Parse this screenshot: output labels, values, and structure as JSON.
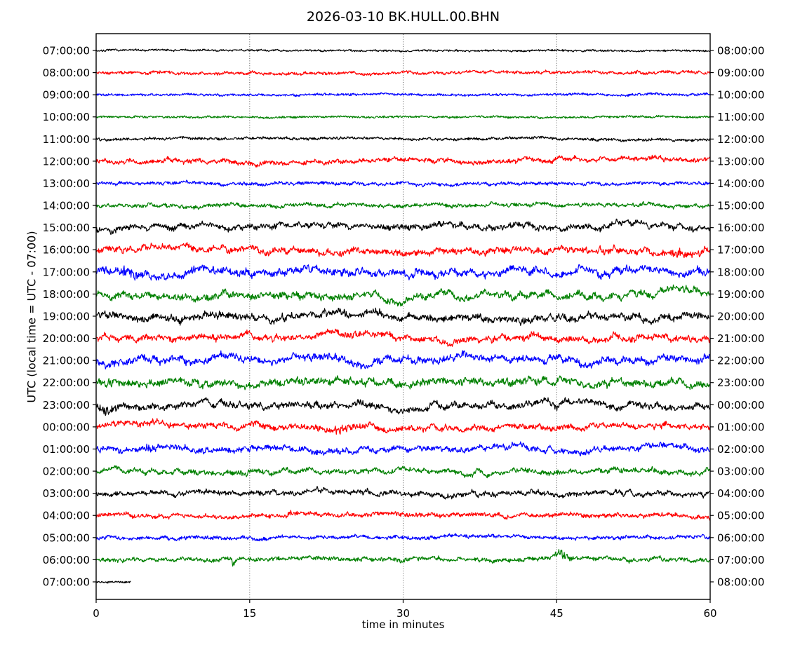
{
  "window": {
    "title": "2026-03-10 BK.HULL.00.BHN"
  },
  "chart_data": {
    "type": "line",
    "subtype": "seismogram-dayplot",
    "title": "2026-03-10 BK.HULL.00.BHN",
    "station_id": "BK.HULL.00.BHN",
    "date": "2026-03-10",
    "xlabel": "time in minutes",
    "ylabel": "UTC (local time = UTC - 07:00)",
    "xlim": [
      0,
      60
    ],
    "x_ticks": [
      0,
      15,
      30,
      45,
      60
    ],
    "grid_minutes": [
      15,
      30,
      45
    ],
    "grid_style": "dotted",
    "grid_color": "#555555",
    "frame_color": "#000000",
    "background_color": "#ffffff",
    "trace_color_cycle": [
      "#000000",
      "#ff0000",
      "#0000ff",
      "#008000"
    ],
    "minutes_per_line": 60,
    "rows": [
      {
        "utc_left_label": "07:00:00",
        "utc_right_label": "08:00:00",
        "color": "#000000",
        "amp": 2.2,
        "len_min": 60,
        "events": []
      },
      {
        "utc_left_label": "08:00:00",
        "utc_right_label": "09:00:00",
        "color": "#ff0000",
        "amp": 3.2,
        "len_min": 60,
        "events": []
      },
      {
        "utc_left_label": "09:00:00",
        "utc_right_label": "10:00:00",
        "color": "#0000ff",
        "amp": 2.6,
        "len_min": 60,
        "events": []
      },
      {
        "utc_left_label": "10:00:00",
        "utc_right_label": "11:00:00",
        "color": "#008000",
        "amp": 2.4,
        "len_min": 60,
        "events": []
      },
      {
        "utc_left_label": "11:00:00",
        "utc_right_label": "12:00:00",
        "color": "#000000",
        "amp": 3.0,
        "len_min": 60,
        "events": []
      },
      {
        "utc_left_label": "12:00:00",
        "utc_right_label": "13:00:00",
        "color": "#ff0000",
        "amp": 4.5,
        "len_min": 60,
        "events": []
      },
      {
        "utc_left_label": "13:00:00",
        "utc_right_label": "14:00:00",
        "color": "#0000ff",
        "amp": 3.5,
        "len_min": 60,
        "events": []
      },
      {
        "utc_left_label": "14:00:00",
        "utc_right_label": "15:00:00",
        "color": "#008000",
        "amp": 3.8,
        "len_min": 60,
        "events": []
      },
      {
        "utc_left_label": "15:00:00",
        "utc_right_label": "16:00:00",
        "color": "#000000",
        "amp": 5.5,
        "len_min": 60,
        "events": []
      },
      {
        "utc_left_label": "16:00:00",
        "utc_right_label": "17:00:00",
        "color": "#ff0000",
        "amp": 6.0,
        "len_min": 60,
        "events": [
          {
            "min": 57.0,
            "gain": 0.5,
            "width_min": 0.6
          }
        ]
      },
      {
        "utc_left_label": "17:00:00",
        "utc_right_label": "18:00:00",
        "color": "#0000ff",
        "amp": 7.0,
        "len_min": 60,
        "events": [
          {
            "min": 3.1,
            "gain": 0.9,
            "width_min": 0.5
          }
        ]
      },
      {
        "utc_left_label": "18:00:00",
        "utc_right_label": "19:00:00",
        "color": "#008000",
        "amp": 6.5,
        "len_min": 60,
        "events": []
      },
      {
        "utc_left_label": "19:00:00",
        "utc_right_label": "20:00:00",
        "color": "#000000",
        "amp": 6.5,
        "len_min": 60,
        "events": []
      },
      {
        "utc_left_label": "20:00:00",
        "utc_right_label": "21:00:00",
        "color": "#ff0000",
        "amp": 6.0,
        "len_min": 60,
        "events": []
      },
      {
        "utc_left_label": "21:00:00",
        "utc_right_label": "22:00:00",
        "color": "#0000ff",
        "amp": 6.8,
        "len_min": 60,
        "events": []
      },
      {
        "utc_left_label": "22:00:00",
        "utc_right_label": "23:00:00",
        "color": "#008000",
        "amp": 6.8,
        "len_min": 60,
        "events": []
      },
      {
        "utc_left_label": "23:00:00",
        "utc_right_label": "00:00:00",
        "color": "#000000",
        "amp": 6.0,
        "len_min": 60,
        "events": [
          {
            "min": 1.2,
            "gain": 0.7,
            "width_min": 0.9
          }
        ]
      },
      {
        "utc_left_label": "00:00:00",
        "utc_right_label": "01:00:00",
        "color": "#ff0000",
        "amp": 5.5,
        "len_min": 60,
        "events": [
          {
            "min": 23.6,
            "gain": 0.6,
            "width_min": 0.9
          }
        ]
      },
      {
        "utc_left_label": "01:00:00",
        "utc_right_label": "02:00:00",
        "color": "#0000ff",
        "amp": 5.5,
        "len_min": 60,
        "events": [
          {
            "min": 5.2,
            "gain": 0.9,
            "width_min": 0.4
          }
        ]
      },
      {
        "utc_left_label": "02:00:00",
        "utc_right_label": "03:00:00",
        "color": "#008000",
        "amp": 4.8,
        "len_min": 60,
        "events": []
      },
      {
        "utc_left_label": "03:00:00",
        "utc_right_label": "04:00:00",
        "color": "#000000",
        "amp": 4.8,
        "len_min": 60,
        "events": []
      },
      {
        "utc_left_label": "04:00:00",
        "utc_right_label": "05:00:00",
        "color": "#ff0000",
        "amp": 4.2,
        "len_min": 60,
        "events": [
          {
            "min": 19.0,
            "gain": 0.6,
            "width_min": 0.4
          }
        ]
      },
      {
        "utc_left_label": "05:00:00",
        "utc_right_label": "06:00:00",
        "color": "#0000ff",
        "amp": 3.8,
        "len_min": 60,
        "events": []
      },
      {
        "utc_left_label": "06:00:00",
        "utc_right_label": "07:00:00",
        "color": "#008000",
        "amp": 4.2,
        "len_min": 60,
        "events": [
          {
            "min": 13.4,
            "gain": 1.6,
            "width_min": 0.12
          },
          {
            "min": 45.4,
            "gain": 1.4,
            "width_min": 0.5
          }
        ]
      },
      {
        "utc_left_label": "07:00:00",
        "utc_right_label": "08:00:00",
        "color": "#000000",
        "amp": 2.2,
        "len_min": 3.4,
        "events": []
      }
    ]
  }
}
